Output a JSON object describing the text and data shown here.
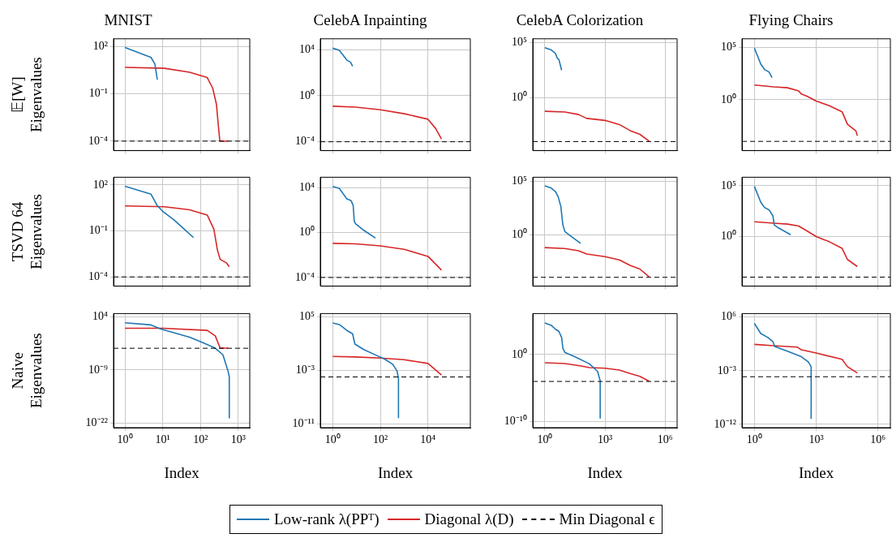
{
  "chart_data": [
    {
      "type": "line",
      "title": "MNIST",
      "ylabel": "𝔼[W] Eigenvalues",
      "log": "xy",
      "grid": true,
      "legend": "bottom",
      "tick_labels": "y",
      "xlim": [
        0.5,
        2000
      ],
      "ylim": [
        2.5e-05,
        320
      ],
      "xticks": [
        1,
        10,
        100,
        1000
      ],
      "yticks": [
        {
          "value": 100,
          "label": "10²"
        },
        {
          "value": 0.1,
          "label": "10⁻¹"
        },
        {
          "value": 0.0001,
          "label": "10⁻⁴"
        }
      ],
      "series": [
        {
          "name": "Low-rank λ(PPᵀ)",
          "color": "#1f77b4",
          "x": [
            1,
            4.9,
            6.2,
            7.2
          ],
          "values": [
            89,
            21,
            8,
            0.8
          ]
        },
        {
          "name": "Diagonal λ(D)",
          "color": "#d62728",
          "x": [
            1,
            11,
            51,
            150,
            210,
            263,
            295,
            324,
            537
          ],
          "values": [
            4.9,
            4.3,
            2.4,
            1.1,
            0.23,
            0.022,
            0.001,
            0.0001,
            0.0001
          ]
        }
      ],
      "ref_lines": [
        {
          "axis": "y",
          "value": 0.0001,
          "label": "Min Diagonal ϵ",
          "color": "#000000",
          "line_style": "dashed"
        }
      ]
    },
    {
      "type": "line",
      "title": "CelebA Inpainting",
      "log": "xy",
      "grid": true,
      "tick_labels": "y",
      "xlim": [
        0.3,
        600000
      ],
      "ylim": [
        1.7e-05,
        85000
      ],
      "xticks": [
        1,
        100,
        10000
      ],
      "yticks": [
        {
          "value": 10000,
          "label": "10⁴"
        },
        {
          "value": 1,
          "label": "10⁰"
        },
        {
          "value": 0.0001,
          "label": "10⁻⁴"
        }
      ],
      "series": [
        {
          "color": "#1f77b4",
          "x": [
            1,
            1.9,
            3.9,
            5.6,
            6.8
          ],
          "values": [
            13000,
            8500,
            1200,
            800,
            360
          ]
        },
        {
          "color": "#d62728",
          "x": [
            1,
            9,
            100,
            1000,
            10000,
            21000,
            37000
          ],
          "values": [
            0.12,
            0.1,
            0.059,
            0.027,
            0.009,
            0.0014,
            0.00017
          ]
        }
      ],
      "ref_lines": [
        {
          "axis": "y",
          "value": 0.0001,
          "color": "#000000",
          "line_style": "dashed"
        }
      ]
    },
    {
      "type": "line",
      "title": "CelebA Colorization",
      "log": "xy",
      "grid": true,
      "tick_labels": "y",
      "xlim": [
        0.25,
        4000000
      ],
      "ylim": [
        1.5e-05,
        230000
      ],
      "xticks": [
        1,
        1000,
        1000000
      ],
      "yticks": [
        {
          "value": 100000,
          "label": "10⁵"
        },
        {
          "value": 1,
          "label": "10⁰"
        }
      ],
      "series": [
        {
          "color": "#1f77b4",
          "x": [
            1,
            2.1,
            3.4,
            4.2,
            5,
            6.9
          ],
          "values": [
            36000,
            22000,
            10500,
            3800,
            3100,
            320
          ]
        },
        {
          "color": "#d62728",
          "x": [
            1,
            10,
            48,
            123,
            1000,
            5200,
            18000,
            55000,
            160000
          ],
          "values": [
            0.057,
            0.05,
            0.029,
            0.013,
            0.0085,
            0.0036,
            0.001,
            0.00046,
            0.00011
          ]
        }
      ],
      "ref_lines": [
        {
          "axis": "y",
          "value": 0.0001,
          "color": "#000000",
          "line_style": "dashed"
        }
      ]
    },
    {
      "type": "line",
      "title": "Flying Chairs",
      "log": "xy",
      "grid": true,
      "tick_labels": "y",
      "xlim": [
        0.25,
        4000000
      ],
      "ylim": [
        1.3e-05,
        700000
      ],
      "xticks": [
        1,
        1000,
        1000000
      ],
      "yticks": [
        {
          "value": 100000,
          "label": "10⁵"
        },
        {
          "value": 1,
          "label": "10⁰"
        }
      ],
      "series": [
        {
          "color": "#1f77b4",
          "x": [
            1,
            2.05,
            3.1,
            5.2,
            7.2
          ],
          "values": [
            89000,
            2600,
            800,
            440,
            130
          ]
        },
        {
          "color": "#d62728",
          "x": [
            1,
            8.4,
            40,
            140,
            190,
            355,
            1000,
            4300,
            18000,
            33000,
            85000,
            100000
          ],
          "values": [
            26,
            17,
            14,
            7,
            3.5,
            2.2,
            0.74,
            0.27,
            0.07,
            0.0044,
            0.001,
            0.00035
          ]
        }
      ],
      "ref_lines": [
        {
          "axis": "y",
          "value": 0.0001,
          "color": "#000000",
          "line_style": "dashed"
        }
      ]
    },
    {
      "type": "line",
      "ylabel": "TSVD 64 Eigenvalues",
      "log": "xy",
      "grid": true,
      "tick_labels": "y",
      "xlim": [
        0.5,
        2000
      ],
      "ylim": [
        2.5e-05,
        320
      ],
      "xticks": [
        1,
        10,
        100,
        1000
      ],
      "yticks": [
        {
          "value": 100,
          "label": "10²"
        },
        {
          "value": 0.1,
          "label": "10⁻¹"
        },
        {
          "value": 0.0001,
          "label": "10⁻⁴"
        }
      ],
      "series": [
        {
          "color": "#1f77b4",
          "x": [
            1,
            4.9,
            7.2,
            9.8,
            20,
            37,
            65
          ],
          "values": [
            82,
            25,
            4.4,
            2,
            0.52,
            0.13,
            0.037
          ]
        },
        {
          "color": "#d62728",
          "x": [
            1,
            11,
            51,
            150,
            225,
            280,
            330,
            490,
            575
          ],
          "values": [
            4.3,
            3.8,
            2.4,
            1.1,
            0.13,
            0.0055,
            0.0014,
            0.0008,
            0.00045
          ]
        }
      ],
      "ref_lines": [
        {
          "axis": "y",
          "value": 0.0001,
          "color": "#000000",
          "line_style": "dashed"
        }
      ]
    },
    {
      "type": "line",
      "log": "xy",
      "grid": true,
      "tick_labels": "y",
      "xlim": [
        0.3,
        600000
      ],
      "ylim": [
        1.7e-05,
        85000
      ],
      "xticks": [
        1,
        100,
        10000
      ],
      "yticks": [
        {
          "value": 10000,
          "label": "10⁴"
        },
        {
          "value": 1,
          "label": "10⁰"
        },
        {
          "value": 0.0001,
          "label": "10⁻⁴"
        }
      ],
      "series": [
        {
          "color": "#1f77b4",
          "x": [
            1,
            1.9,
            3.9,
            5.9,
            7.2,
            8,
            9,
            20,
            62
          ],
          "values": [
            13000,
            8500,
            1000,
            690,
            260,
            10.5,
            6.2,
            1.6,
            0.32
          ]
        },
        {
          "color": "#d62728",
          "x": [
            1,
            9,
            100,
            1000,
            10000,
            37000
          ],
          "values": [
            0.11,
            0.1,
            0.065,
            0.032,
            0.0076,
            0.00045
          ]
        }
      ],
      "ref_lines": [
        {
          "axis": "y",
          "value": 0.0001,
          "color": "#000000",
          "line_style": "dashed"
        }
      ]
    },
    {
      "type": "line",
      "log": "xy",
      "grid": true,
      "tick_labels": "y",
      "xlim": [
        0.25,
        4000000
      ],
      "ylim": [
        1.5e-05,
        230000
      ],
      "xticks": [
        1,
        1000,
        1000000
      ],
      "yticks": [
        {
          "value": 100000,
          "label": "10⁵"
        },
        {
          "value": 1,
          "label": "10⁰"
        }
      ],
      "series": [
        {
          "color": "#1f77b4",
          "x": [
            1,
            2.1,
            3.4,
            4.6,
            6.3,
            7.9,
            10,
            18.9,
            61
          ],
          "values": [
            36000,
            22000,
            10500,
            3500,
            430,
            8.5,
            1.9,
            0.76,
            0.15
          ]
        },
        {
          "color": "#d62728",
          "x": [
            1,
            10,
            48,
            123,
            1000,
            5200,
            18000,
            55000,
            160000
          ],
          "values": [
            0.06,
            0.05,
            0.031,
            0.015,
            0.0085,
            0.0043,
            0.0013,
            0.0006,
            0.00011
          ]
        }
      ],
      "ref_lines": [
        {
          "axis": "y",
          "value": 0.0001,
          "color": "#000000",
          "line_style": "dashed"
        }
      ]
    },
    {
      "type": "line",
      "log": "xy",
      "grid": true,
      "tick_labels": "y",
      "xlim": [
        0.25,
        4000000
      ],
      "ylim": [
        1.3e-05,
        700000
      ],
      "xticks": [
        1,
        1000,
        1000000
      ],
      "yticks": [
        {
          "value": 100000,
          "label": "10⁵"
        },
        {
          "value": 1,
          "label": "10⁰"
        }
      ],
      "series": [
        {
          "color": "#1f77b4",
          "x": [
            1,
            2.05,
            3.1,
            5.2,
            7.9,
            9.2,
            13.4,
            58
          ],
          "values": [
            89000,
            2400,
            740,
            420,
            110,
            14,
            8,
            1.5
          ]
        },
        {
          "color": "#d62728",
          "x": [
            1,
            8.4,
            40,
            140,
            355,
            1000,
            4300,
            18000,
            33000,
            100000
          ],
          "values": [
            29,
            21,
            17,
            11,
            3.6,
            1,
            0.31,
            0.07,
            0.0055,
            0.0011
          ]
        }
      ],
      "ref_lines": [
        {
          "axis": "y",
          "value": 0.0001,
          "color": "#000000",
          "line_style": "dashed"
        }
      ]
    },
    {
      "type": "line",
      "ylabel": "Naive Eigenvalues",
      "xlabel": "Index",
      "log": "xy",
      "grid": true,
      "xlim": [
        0.5,
        2000
      ],
      "ylim": [
        8e-24,
        60000
      ],
      "xticks": [
        {
          "value": 1,
          "label": "10⁰"
        },
        {
          "value": 10,
          "label": "10¹"
        },
        {
          "value": 100,
          "label": "10²"
        },
        {
          "value": 1000,
          "label": "10³"
        }
      ],
      "yticks": [
        {
          "value": 10000,
          "label": "10⁴"
        },
        {
          "value": 1e-09,
          "label": "10⁻⁹"
        },
        {
          "value": 1e-22,
          "label": "10⁻²²"
        }
      ],
      "series": [
        {
          "color": "#1f77b4",
          "x": [
            1,
            4.9,
            9,
            51,
            115,
            245,
            390,
            535,
            575,
            575
          ],
          "values": [
            340,
            100,
            10,
            0.1,
            0.0047,
            0.00021,
            5e-06,
            5e-10,
            2e-11,
            2e-21
          ]
        },
        {
          "color": "#d62728",
          "x": [
            1,
            10,
            150,
            245,
            330,
            540
          ],
          "values": [
            16,
            16,
            4.7,
            0.21,
            0.00021,
            0.00021
          ]
        }
      ],
      "ref_lines": [
        {
          "axis": "y",
          "value": 0.0002,
          "color": "#000000",
          "line_style": "dashed"
        }
      ]
    },
    {
      "type": "line",
      "xlabel": "Index",
      "log": "xy",
      "grid": true,
      "xlim": [
        0.3,
        600000
      ],
      "ylim": [
        2.5e-12,
        320000
      ],
      "xticks": [
        {
          "value": 1,
          "label": "10⁰"
        },
        {
          "value": 100,
          "label": "10²"
        },
        {
          "value": 10000,
          "label": "10⁴"
        }
      ],
      "yticks": [
        {
          "value": 100000,
          "label": "10⁵"
        },
        {
          "value": 0.001,
          "label": "10⁻³"
        },
        {
          "value": 1e-11,
          "label": "10⁻¹¹"
        }
      ],
      "series": [
        {
          "color": "#1f77b4",
          "x": [
            1,
            1.9,
            3.9,
            6.8,
            8.5,
            20,
            62,
            145,
            330,
            500,
            575,
            575
          ],
          "values": [
            12600,
            7200,
            930,
            300,
            8.5,
            1.3,
            0.2,
            0.051,
            0.0079,
            0.00079,
            7e-05,
            8e-11
          ]
        },
        {
          "color": "#d62728",
          "x": [
            1,
            9,
            100,
            1000,
            10000,
            37000
          ],
          "values": [
            0.12,
            0.1,
            0.068,
            0.039,
            0.0105,
            0.00019
          ]
        }
      ],
      "ref_lines": [
        {
          "axis": "y",
          "value": 0.0001,
          "color": "#000000",
          "line_style": "dashed"
        }
      ]
    },
    {
      "type": "line",
      "xlabel": "Index",
      "log": "xy",
      "grid": true,
      "xlim": [
        0.25,
        4000000
      ],
      "ylim": [
        1.3e-11,
        1300000
      ],
      "xticks": [
        {
          "value": 1,
          "label": "10⁰"
        },
        {
          "value": 1000,
          "label": "10³"
        },
        {
          "value": 1000000,
          "label": "10⁶"
        }
      ],
      "yticks": [
        {
          "value": 1,
          "label": "10⁰"
        },
        {
          "value": 1e-10,
          "label": "10⁻¹⁰"
        }
      ],
      "series": [
        {
          "color": "#1f77b4",
          "x": [
            1,
            2.1,
            3.4,
            5,
            6.9,
            8,
            10,
            36,
            168,
            430,
            580,
            580
          ],
          "values": [
            50000,
            23000,
            5900,
            3000,
            350,
            8.5,
            2.1,
            0.4,
            0.042,
            0.0031,
            0.00012,
            3.4e-10
          ]
        },
        {
          "color": "#d62728",
          "x": [
            1,
            10,
            65,
            168,
            1000,
            5200,
            18000,
            55000,
            160000
          ],
          "values": [
            0.062,
            0.046,
            0.02,
            0.0115,
            0.0095,
            0.0049,
            0.0015,
            0.00058,
            0.00011
          ]
        }
      ],
      "ref_lines": [
        {
          "axis": "y",
          "value": 0.0001,
          "color": "#000000",
          "line_style": "dashed"
        }
      ]
    },
    {
      "type": "line",
      "xlabel": "Index",
      "log": "xy",
      "grid": true,
      "xlim": [
        0.25,
        4000000
      ],
      "ylim": [
        2.8e-13,
        4000000
      ],
      "xticks": [
        {
          "value": 1,
          "label": "10⁰"
        },
        {
          "value": 1000,
          "label": "10³"
        },
        {
          "value": 1000000,
          "label": "10⁶"
        }
      ],
      "yticks": [
        {
          "value": 1000000,
          "label": "10⁶"
        },
        {
          "value": 0.001,
          "label": "10⁻³"
        },
        {
          "value": 1e-12,
          "label": "10⁻¹²"
        }
      ],
      "series": [
        {
          "color": "#1f77b4",
          "x": [
            1,
            2.05,
            4.5,
            7.9,
            9.8,
            40,
            190,
            420,
            570,
            570
          ],
          "values": [
            89000,
            1800,
            380,
            78,
            12,
            1.9,
            0.23,
            0.029,
            0.0048,
            1e-11
          ]
        },
        {
          "color": "#d62728",
          "x": [
            1,
            8.4,
            120,
            190,
            1000,
            18000,
            33000,
            100000
          ],
          "values": [
            27,
            16,
            9.5,
            3.3,
            0.93,
            0.083,
            0.0048,
            0.00043
          ]
        }
      ],
      "ref_lines": [
        {
          "axis": "y",
          "value": 0.0001,
          "color": "#000000",
          "line_style": "dashed"
        }
      ]
    }
  ]
}
